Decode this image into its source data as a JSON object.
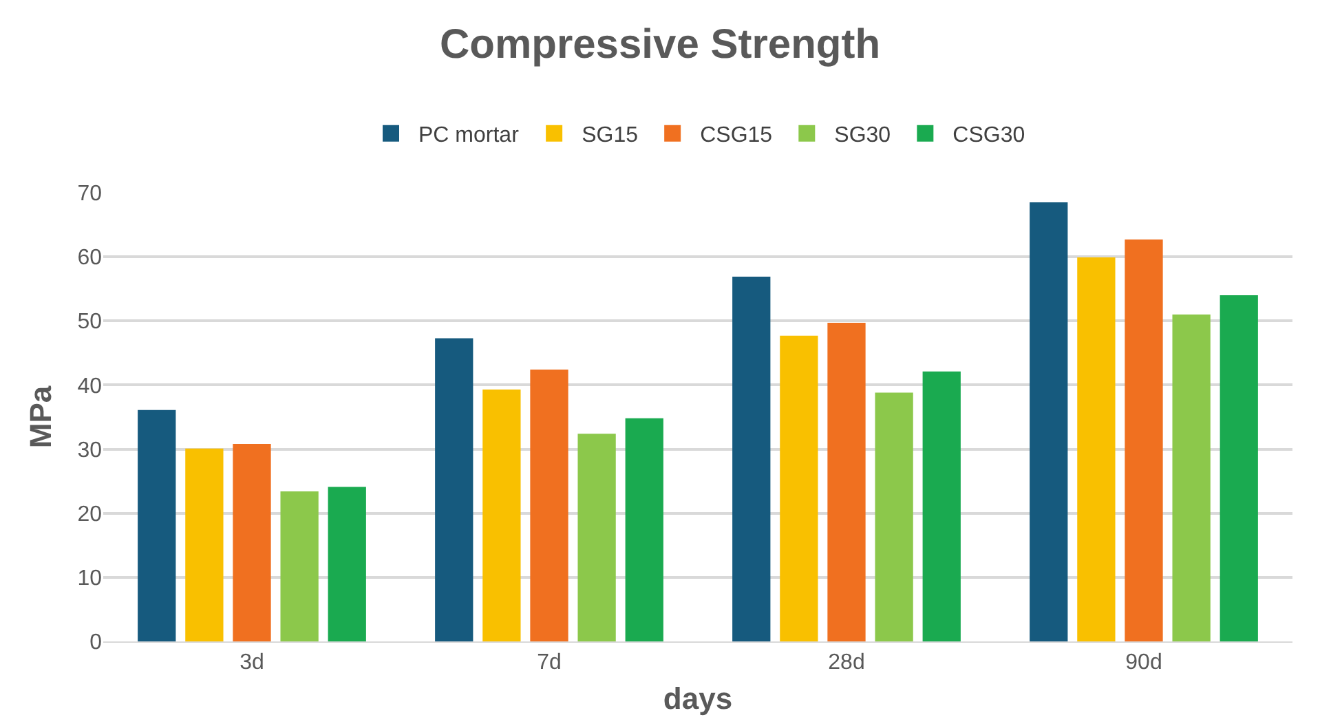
{
  "chart_data": {
    "type": "bar",
    "title": "Compressive Strength",
    "xlabel": "days",
    "ylabel": "MPa",
    "categories": [
      "3d",
      "7d",
      "28d",
      "90d"
    ],
    "series": [
      {
        "name": "PC mortar",
        "color": "#165a7e",
        "values": [
          36.1,
          47.3,
          56.9,
          68.5
        ]
      },
      {
        "name": "SG15",
        "color": "#f9c000",
        "values": [
          30.1,
          39.3,
          47.7,
          59.9
        ]
      },
      {
        "name": "CSG15",
        "color": "#f07020",
        "values": [
          30.8,
          42.4,
          49.7,
          62.7
        ]
      },
      {
        "name": "SG30",
        "color": "#8cc84b",
        "values": [
          23.4,
          32.4,
          38.8,
          51.0
        ]
      },
      {
        "name": "CSG30",
        "color": "#1aaa50",
        "values": [
          24.1,
          34.8,
          42.1,
          54.0
        ]
      }
    ],
    "ylim": [
      0,
      70
    ],
    "yticks": [
      0,
      10,
      20,
      30,
      40,
      50,
      60,
      70
    ],
    "grid": "y",
    "legend": "top"
  }
}
